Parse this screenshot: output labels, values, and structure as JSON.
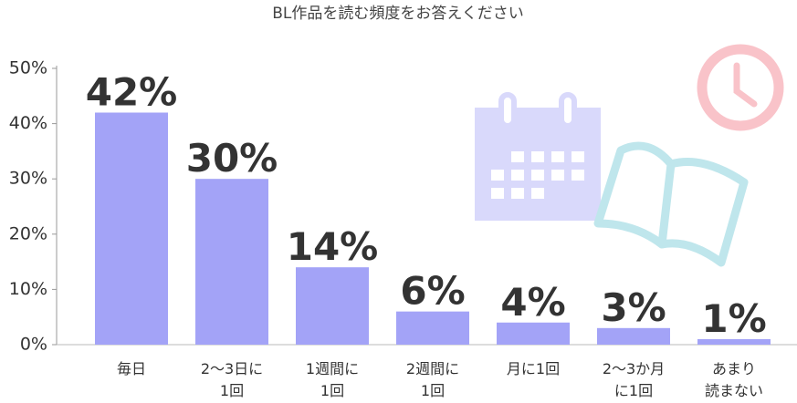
{
  "chart_data": {
    "type": "bar",
    "title": "BL作品を読む頻度をお答えください",
    "categories": [
      "毎日",
      "2〜3日に\n1回",
      "1週間に\n1回",
      "2週間に\n1回",
      "月に1回",
      "2〜3か月\nに1回",
      "あまり\n読まない"
    ],
    "values": [
      42,
      30,
      14,
      6,
      4,
      3,
      1
    ],
    "value_labels": [
      "42%",
      "30%",
      "14%",
      "6%",
      "4%",
      "3%",
      "1%"
    ],
    "color": "#a3a3f7",
    "ylim": [
      0,
      50
    ],
    "yticks": [
      {
        "value": 0,
        "label": "0%"
      },
      {
        "value": 10,
        "label": "10%"
      },
      {
        "value": 20,
        "label": "20%"
      },
      {
        "value": 30,
        "label": "30%"
      },
      {
        "value": 40,
        "label": "40%"
      },
      {
        "value": 50,
        "label": "50%"
      }
    ]
  }
}
